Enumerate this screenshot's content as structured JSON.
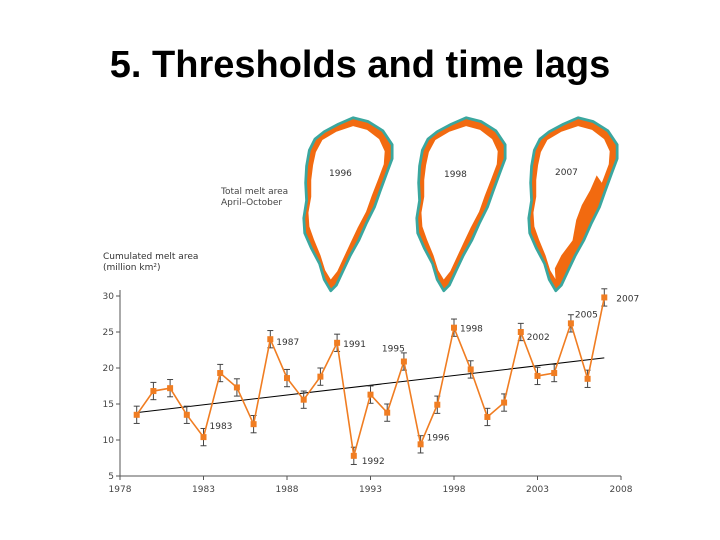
{
  "slide": {
    "title": "5. Thresholds and time lags"
  },
  "maps": {
    "caption_line1": "Total melt area",
    "caption_line2": "April–October",
    "labels": [
      "1996",
      "1998",
      "2007"
    ],
    "colors": {
      "melt": "#f26a10",
      "coast": "#3aa79f",
      "land": "#ffffff"
    }
  },
  "chart_data": {
    "type": "line",
    "ylabel_line1": "Cumulated melt area",
    "ylabel_line2": "(million km²)",
    "xlim": [
      1978,
      2008
    ],
    "ylim": [
      5,
      30
    ],
    "xticks": [
      1978,
      1983,
      1988,
      1993,
      1998,
      2003,
      2008
    ],
    "yticks": [
      5,
      10,
      15,
      20,
      25,
      30
    ],
    "series": [
      {
        "color": "#f07d22",
        "x": [
          1979,
          1980,
          1981,
          1982,
          1983,
          1984,
          1985,
          1986,
          1987,
          1988,
          1989,
          1990,
          1991,
          1992,
          1993,
          1994,
          1995,
          1996,
          1997,
          1998,
          1999,
          2000,
          2001,
          2002,
          2003,
          2004,
          2005,
          2006,
          2007
        ],
        "y": [
          13.5,
          16.8,
          17.2,
          13.5,
          10.4,
          19.3,
          17.3,
          12.2,
          24.0,
          18.6,
          15.6,
          18.8,
          23.5,
          7.8,
          16.3,
          13.8,
          20.9,
          9.4,
          14.9,
          25.6,
          19.8,
          13.2,
          15.2,
          25.0,
          18.9,
          19.3,
          26.2,
          18.5,
          29.8
        ]
      }
    ],
    "trend": {
      "color": "#000000",
      "x": [
        1979,
        2007
      ],
      "y": [
        13.8,
        21.4
      ]
    },
    "annotations": [
      {
        "year": 1983,
        "text": "1983"
      },
      {
        "year": 1987,
        "text": "1987"
      },
      {
        "year": 1991,
        "text": "1991"
      },
      {
        "year": 1992,
        "text": "1992"
      },
      {
        "year": 1995,
        "text": "1995"
      },
      {
        "year": 1996,
        "text": "1996"
      },
      {
        "year": 1998,
        "text": "1998"
      },
      {
        "year": 2002,
        "text": "2002"
      },
      {
        "year": 2005,
        "text": "2005"
      },
      {
        "year": 2007,
        "text": "2007"
      }
    ]
  }
}
